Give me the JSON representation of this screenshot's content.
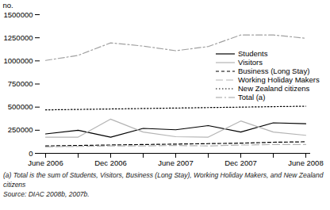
{
  "chart_data": {
    "type": "line",
    "y_label": "no.",
    "categories": [
      "June 2006",
      null,
      "Dec 2006",
      null,
      "June 2007",
      null,
      "Dec 2007",
      null,
      "June 2008"
    ],
    "series": [
      {
        "name": "Students",
        "color": "#000000",
        "line_style": "solid",
        "values": [
          210000,
          250000,
          175000,
          270000,
          255000,
          300000,
          230000,
          330000,
          320000
        ]
      },
      {
        "name": "Visitors",
        "color": "#b4b4b4",
        "line_style": "solid",
        "values": [
          175000,
          175000,
          370000,
          230000,
          180000,
          175000,
          350000,
          230000,
          195000
        ]
      },
      {
        "name": "Business (Long Stay)",
        "color": "#000000",
        "line_style": "dashed",
        "values": [
          80000,
          85000,
          90000,
          95000,
          100000,
          105000,
          110000,
          120000,
          125000
        ]
      },
      {
        "name": "Working Holiday Makers",
        "color": "#b4b4b4",
        "line_style": "longdash",
        "values": [
          70000,
          75000,
          80000,
          80000,
          85000,
          80000,
          90000,
          95000,
          95000
        ]
      },
      {
        "name": "New Zealand citizens",
        "color": "#000000",
        "line_style": "dotted",
        "values": [
          470000,
          475000,
          480000,
          485000,
          490000,
          495000,
          500000,
          505000,
          510000
        ]
      },
      {
        "name": "Total (a)",
        "color": "#a0a0a0",
        "line_style": "dashdot",
        "values": [
          1005000,
          1060000,
          1195000,
          1160000,
          1110000,
          1155000,
          1280000,
          1280000,
          1245000
        ]
      }
    ],
    "ylim": [
      0,
      1500000
    ],
    "yticks": [
      0,
      250000,
      500000,
      750000,
      1000000,
      1250000,
      1500000
    ],
    "legend": "right",
    "footnotes": [
      "(a) Total is the sum of Students, Visitors, Business (Long Stay), Working Holiday Makers, and New Zealand citizens",
      "Source: DIAC 2008b, 2007b."
    ]
  }
}
